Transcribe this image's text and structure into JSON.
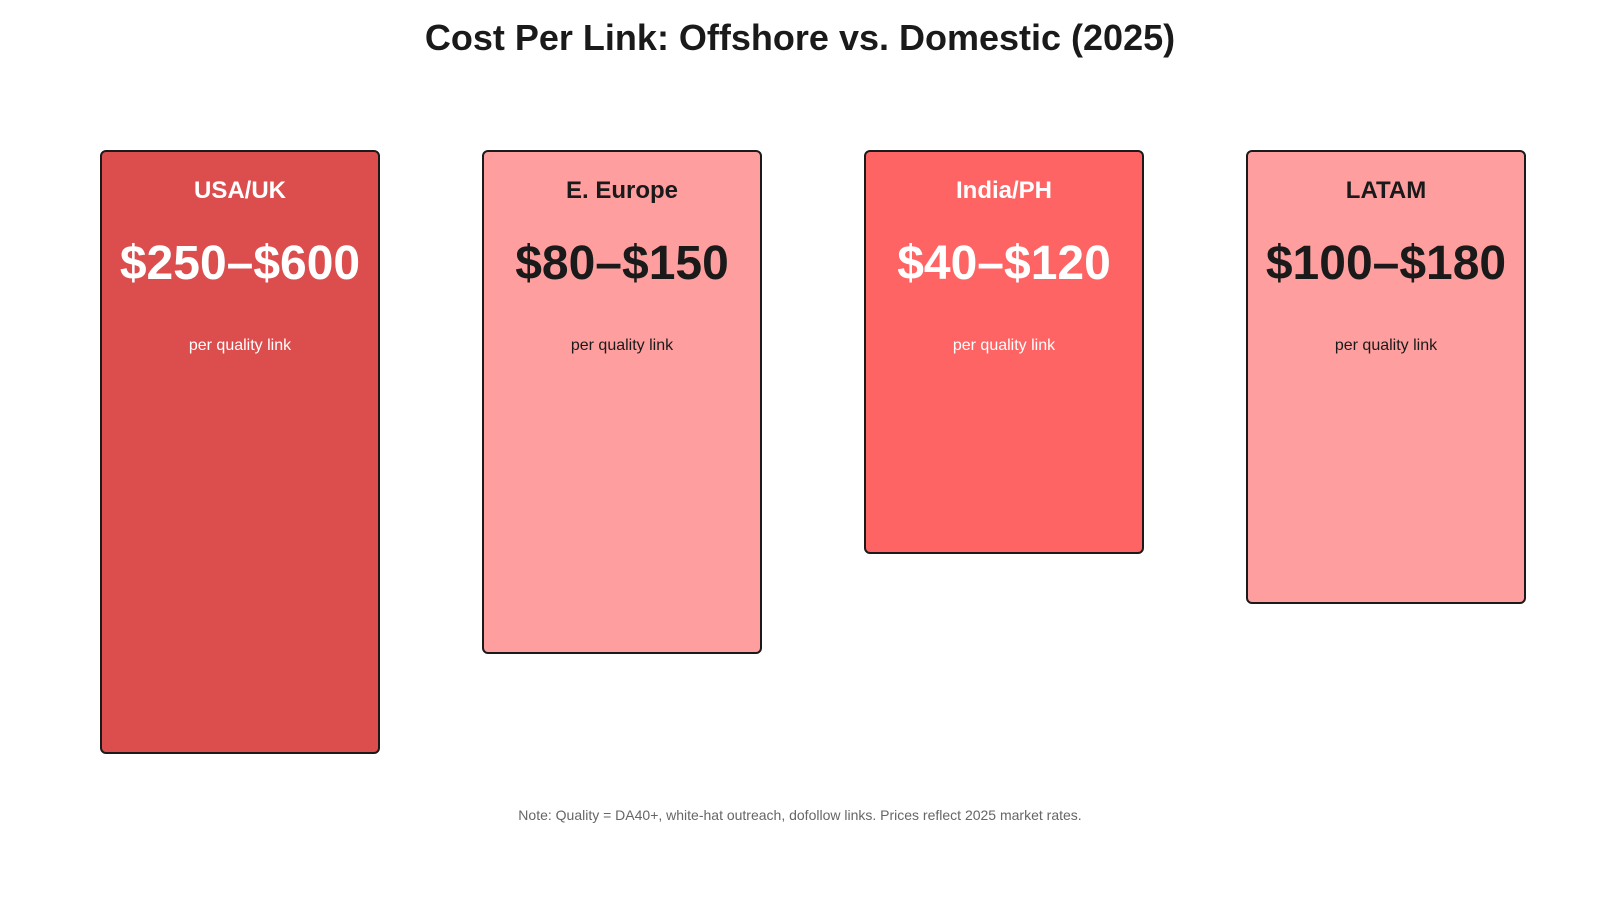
{
  "chart_data": {
    "type": "bar",
    "title": "Cost Per Link: Offshore vs. Domestic (2025)",
    "categories": [
      "USA/UK",
      "E. Europe",
      "India/PH",
      "LATAM"
    ],
    "series": [
      {
        "values": [
          [
            250,
            600
          ],
          [
            80,
            150
          ],
          [
            40,
            120
          ],
          [
            100,
            180
          ]
        ]
      }
    ],
    "bars": [
      {
        "name": "USA/UK",
        "range_label": "$250–$600",
        "sublabel": "per quality link",
        "min": 250,
        "max": 600,
        "color": "#dc4e4e",
        "text_color": "#ffffff"
      },
      {
        "name": "E. Europe",
        "range_label": "$80–$150",
        "sublabel": "per quality link",
        "min": 80,
        "max": 150,
        "color": "#ff9e9e",
        "text_color": "#1a1a1a"
      },
      {
        "name": "India/PH",
        "range_label": "$40–$120",
        "sublabel": "per quality link",
        "min": 40,
        "max": 120,
        "color": "#ff6464",
        "text_color": "#ffffff"
      },
      {
        "name": "LATAM",
        "range_label": "$100–$180",
        "sublabel": "per quality link",
        "min": 100,
        "max": 180,
        "color": "#ff9e9e",
        "text_color": "#1a1a1a"
      }
    ],
    "note": "Note: Quality = DA40+, white-hat outreach, dofollow links. Prices reflect 2025 market rates.",
    "grid": false,
    "legend": "none"
  }
}
